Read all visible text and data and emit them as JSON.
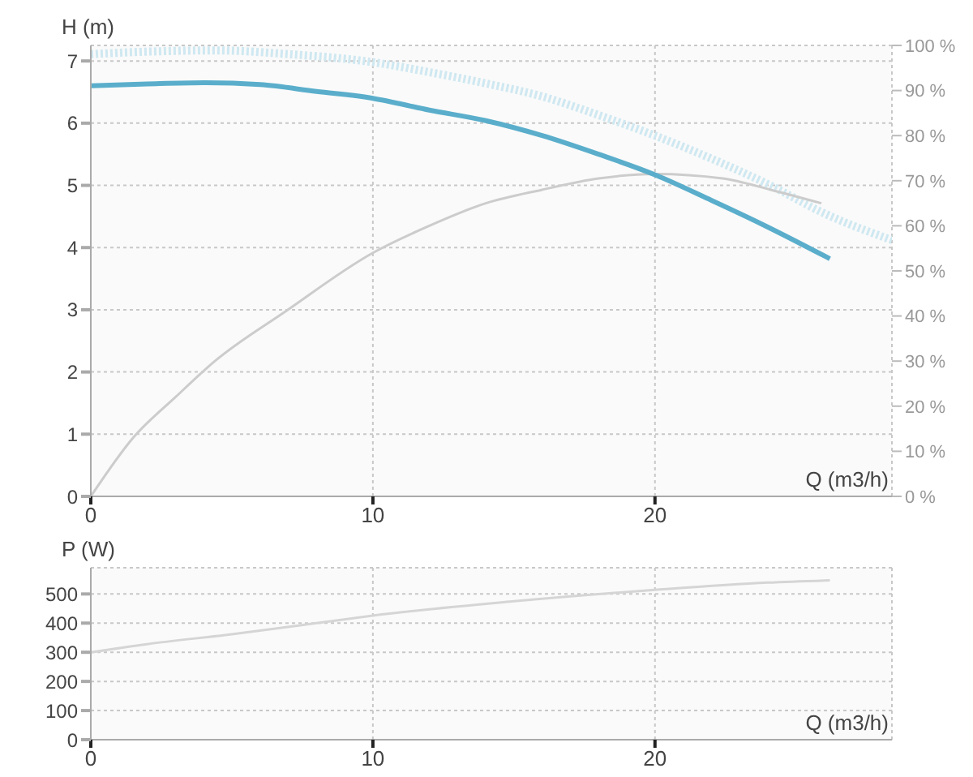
{
  "chart_data": [
    {
      "type": "line",
      "xlabel": "Q (m3/h)",
      "ylabel": "H (m)",
      "xlim": [
        0,
        28.4
      ],
      "xticks": [
        0,
        10,
        20
      ],
      "ylim": [
        0,
        7.25
      ],
      "yticks": [
        0,
        1,
        2,
        3,
        4,
        5,
        6,
        7
      ],
      "y2lim": [
        0,
        100
      ],
      "y2ticks": [
        {
          "value": 0,
          "label": "0 %"
        },
        {
          "value": 10,
          "label": "10 %"
        },
        {
          "value": 20,
          "label": "20 %"
        },
        {
          "value": 30,
          "label": "30 %"
        },
        {
          "value": 40,
          "label": "40 %"
        },
        {
          "value": 50,
          "label": "50 %"
        },
        {
          "value": 60,
          "label": "60 %"
        },
        {
          "value": 70,
          "label": "70 %"
        },
        {
          "value": 80,
          "label": "80 %"
        },
        {
          "value": 90,
          "label": "90 %"
        },
        {
          "value": 100,
          "label": "100 %"
        }
      ],
      "grid": true,
      "series": [
        {
          "color": "#cfe8f1",
          "line_style": "dotted",
          "x": [
            0,
            2,
            4.4,
            7,
            10,
            12,
            14,
            16,
            18,
            20,
            22,
            24,
            26,
            28.4
          ],
          "values": [
            7.11,
            7.15,
            7.17,
            7.11,
            6.98,
            6.82,
            6.64,
            6.43,
            6.13,
            5.8,
            5.43,
            5.02,
            4.55,
            4.12
          ]
        },
        {
          "color": "#cccccc",
          "axis": "y2",
          "x": [
            0,
            1.5,
            3,
            4.4,
            6.9,
            10,
            12,
            14,
            16,
            18,
            20,
            22.4,
            24.1,
            25.9
          ],
          "values": [
            0,
            13,
            22,
            30,
            41,
            54,
            60,
            65,
            68,
            70.5,
            71.5,
            70.5,
            68,
            65
          ]
        },
        {
          "color": "#5aaecb",
          "x": [
            0,
            2,
            4,
            6,
            8,
            10,
            12,
            14,
            16,
            18,
            20,
            22,
            24,
            26.2
          ],
          "values": [
            6.6,
            6.63,
            6.65,
            6.62,
            6.51,
            6.4,
            6.21,
            6.04,
            5.8,
            5.5,
            5.17,
            4.76,
            4.33,
            3.82
          ]
        }
      ]
    },
    {
      "type": "line",
      "xlabel": "Q (m3/h)",
      "ylabel": "P (W)",
      "xlim": [
        0,
        28.4
      ],
      "xticks": [
        0,
        10,
        20
      ],
      "ylim": [
        0,
        590
      ],
      "yticks": [
        0,
        100,
        200,
        300,
        400,
        500
      ],
      "grid": true,
      "series": [
        {
          "color": "#d5d5d5",
          "x": [
            0,
            2,
            5,
            8,
            10,
            15,
            20,
            24,
            26.2
          ],
          "values": [
            300,
            328,
            362,
            400,
            426,
            475,
            514,
            539,
            547
          ]
        }
      ]
    }
  ]
}
